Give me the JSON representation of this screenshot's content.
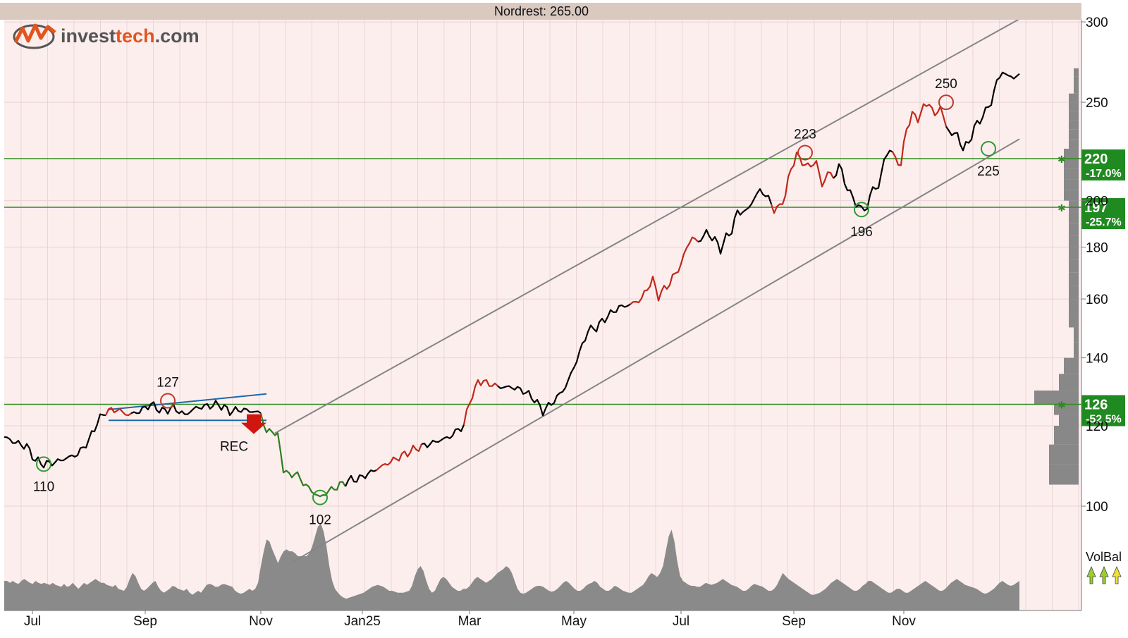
{
  "header": {
    "title": "Nordrest: 265.00"
  },
  "logo": {
    "text_prefix": "invest",
    "text_accent": "tech",
    "text_suffix": ".com"
  },
  "colors": {
    "plot_bg": "#fdeeee",
    "header_bg": "#d9c9bf",
    "price_up": "#000000",
    "price_trend": "#c0281a",
    "price_down": "#2e7d1f",
    "channel": "#858585",
    "support": "#2e8b1f",
    "tag_bg": "#1f8a1f",
    "pattern": "#1c6aa8",
    "volume": "#8a8a8a",
    "peak_marker": "#c0392b",
    "trough_marker": "#2e9b2e",
    "signal_arrow": "#d0170f"
  },
  "chart_data": {
    "type": "line",
    "title": "Nordrest: 265.00",
    "x_axis": {
      "tick_labels": [
        "Jul",
        "Sep",
        "Nov",
        "Jan25",
        "Mar",
        "May",
        "Jul",
        "Sep",
        "Nov"
      ],
      "tick_index": [
        10,
        50,
        91,
        127,
        165,
        202,
        240,
        280,
        319
      ]
    },
    "y_axis": {
      "tick_labels": [
        "100",
        "120",
        "140",
        "160",
        "180",
        "200",
        "250",
        "300"
      ],
      "tick_values": [
        100,
        120,
        140,
        160,
        180,
        200,
        250,
        300
      ],
      "ylim": [
        100,
        300
      ]
    },
    "price_keypoints": [
      [
        0,
        117
      ],
      [
        4,
        115.5
      ],
      [
        8,
        114.5
      ],
      [
        11,
        111
      ],
      [
        14,
        110
      ],
      [
        18,
        110.5
      ],
      [
        22,
        111.5
      ],
      [
        26,
        112.5
      ],
      [
        30,
        116
      ],
      [
        33,
        121
      ],
      [
        36,
        124
      ],
      [
        40,
        124.5
      ],
      [
        44,
        123
      ],
      [
        48,
        124
      ],
      [
        52,
        126
      ],
      [
        56,
        124
      ],
      [
        60,
        125
      ],
      [
        64,
        123
      ],
      [
        68,
        125
      ],
      [
        72,
        125.5
      ],
      [
        76,
        126
      ],
      [
        80,
        124
      ],
      [
        84,
        124.5
      ],
      [
        88,
        124
      ],
      [
        91,
        123.5
      ],
      [
        93,
        118
      ],
      [
        95,
        119
      ],
      [
        97,
        117
      ],
      [
        99,
        109
      ],
      [
        101,
        107
      ],
      [
        103,
        108
      ],
      [
        106,
        105.5
      ],
      [
        109,
        103.5
      ],
      [
        112,
        102
      ],
      [
        115,
        103.5
      ],
      [
        118,
        104.5
      ],
      [
        122,
        106
      ],
      [
        126,
        106.5
      ],
      [
        130,
        108
      ],
      [
        134,
        109.5
      ],
      [
        138,
        111
      ],
      [
        142,
        112.5
      ],
      [
        146,
        114
      ],
      [
        150,
        115
      ],
      [
        154,
        116
      ],
      [
        158,
        117
      ],
      [
        161,
        119
      ],
      [
        163,
        120
      ],
      [
        165,
        127
      ],
      [
        167,
        130
      ],
      [
        168,
        133
      ],
      [
        172,
        132
      ],
      [
        176,
        131
      ],
      [
        180,
        131
      ],
      [
        184,
        130
      ],
      [
        188,
        127.5
      ],
      [
        191,
        124
      ],
      [
        195,
        127
      ],
      [
        199,
        131
      ],
      [
        202,
        137
      ],
      [
        205,
        144
      ],
      [
        207,
        149
      ],
      [
        210,
        150
      ],
      [
        214,
        154
      ],
      [
        218,
        157
      ],
      [
        222,
        158
      ],
      [
        226,
        160
      ],
      [
        228,
        164
      ],
      [
        230,
        167
      ],
      [
        232,
        161
      ],
      [
        236,
        166
      ],
      [
        240,
        173
      ],
      [
        242,
        180
      ],
      [
        244,
        184
      ],
      [
        246,
        182
      ],
      [
        249,
        186
      ],
      [
        252,
        183
      ],
      [
        254,
        179
      ],
      [
        256,
        184
      ],
      [
        258,
        187
      ],
      [
        260,
        195
      ],
      [
        263,
        195
      ],
      [
        266,
        201
      ],
      [
        268,
        205
      ],
      [
        271,
        201
      ],
      [
        273,
        196
      ],
      [
        275,
        197
      ],
      [
        277,
        203
      ],
      [
        279,
        215
      ],
      [
        281,
        222
      ],
      [
        283,
        218
      ],
      [
        286,
        216
      ],
      [
        288,
        219
      ],
      [
        290,
        206
      ],
      [
        292,
        214
      ],
      [
        294,
        210
      ],
      [
        296,
        217
      ],
      [
        298,
        209
      ],
      [
        300,
        203
      ],
      [
        302,
        199
      ],
      [
        304,
        196
      ],
      [
        306,
        197
      ],
      [
        308,
        206
      ],
      [
        310,
        206
      ],
      [
        312,
        219
      ],
      [
        314,
        225
      ],
      [
        316,
        220
      ],
      [
        318,
        217
      ],
      [
        320,
        236
      ],
      [
        322,
        243
      ],
      [
        324,
        241
      ],
      [
        326,
        247
      ],
      [
        328,
        250
      ],
      [
        330,
        242
      ],
      [
        332,
        248
      ],
      [
        334,
        236
      ],
      [
        336,
        233
      ],
      [
        338,
        232
      ],
      [
        340,
        225
      ],
      [
        342,
        228
      ],
      [
        344,
        236
      ],
      [
        346,
        240
      ],
      [
        348,
        245
      ],
      [
        350,
        250
      ],
      [
        352,
        262
      ],
      [
        354,
        268
      ],
      [
        356,
        265
      ]
    ],
    "red_segments": [
      [
        36,
        44
      ],
      [
        132,
        147
      ],
      [
        163,
        174
      ],
      [
        222,
        245
      ],
      [
        272,
        293
      ],
      [
        315,
        333
      ]
    ],
    "green_segment": [
      91,
      120
    ],
    "annotations": {
      "labels": [
        "110",
        "127",
        "REC",
        "102",
        "223",
        "196",
        "250",
        "225"
      ]
    },
    "peaks_troughs": [
      {
        "label": "110",
        "index": 14,
        "value": 110,
        "kind": "trough"
      },
      {
        "label": "127",
        "index": 58,
        "value": 127,
        "kind": "peak"
      },
      {
        "label": "102",
        "index": 112,
        "value": 102,
        "kind": "trough"
      },
      {
        "label": "223",
        "index": 284,
        "value": 223,
        "kind": "peak"
      },
      {
        "label": "196",
        "index": 304,
        "value": 196,
        "kind": "trough"
      },
      {
        "label": "250",
        "index": 334,
        "value": 250,
        "kind": "peak"
      },
      {
        "label": "225",
        "index": 349,
        "value": 225,
        "kind": "trough"
      }
    ],
    "signal": {
      "label": "REC",
      "index": 90,
      "value": 122,
      "type": "sell"
    },
    "support_resistance": [
      {
        "level": 220,
        "label": "220",
        "pct": "-17.0%"
      },
      {
        "level": 197,
        "label": "197",
        "pct": "-25.7%"
      },
      {
        "level": 126,
        "label": "126",
        "pct": "-52.5%"
      }
    ],
    "channel": {
      "upper": [
        [
          96,
          118
        ],
        [
          360,
          302
        ]
      ],
      "lower": [
        [
          102,
          88
        ],
        [
          360,
          230
        ]
      ]
    },
    "pattern_lines": [
      {
        "from": [
          37,
          124.5
        ],
        "to": [
          93,
          129
        ]
      },
      {
        "from": [
          37,
          121.5
        ],
        "to": [
          93,
          121.5
        ]
      }
    ],
    "volume": {
      "label": "VolBal",
      "values": [
        0.3,
        0.3,
        0.28,
        0.3,
        0.28,
        0.27,
        0.3,
        0.32,
        0.3,
        0.28,
        0.27,
        0.3,
        0.28,
        0.27,
        0.28,
        0.27,
        0.26,
        0.28,
        0.26,
        0.25,
        0.24,
        0.27,
        0.24,
        0.25,
        0.28,
        0.25,
        0.22,
        0.25,
        0.28,
        0.26,
        0.28,
        0.3,
        0.32,
        0.3,
        0.28,
        0.28,
        0.26,
        0.25,
        0.24,
        0.26,
        0.22,
        0.21,
        0.2,
        0.24,
        0.32,
        0.38,
        0.35,
        0.28,
        0.22,
        0.2,
        0.22,
        0.25,
        0.28,
        0.3,
        0.24,
        0.2,
        0.18,
        0.2,
        0.22,
        0.25,
        0.24,
        0.22,
        0.21,
        0.2,
        0.22,
        0.18,
        0.16,
        0.18,
        0.2,
        0.18,
        0.22,
        0.26,
        0.27,
        0.26,
        0.24,
        0.24,
        0.26,
        0.27,
        0.26,
        0.25,
        0.24,
        0.2,
        0.18,
        0.17,
        0.18,
        0.2,
        0.22,
        0.2,
        0.22,
        0.28,
        0.45,
        0.6,
        0.72,
        0.7,
        0.62,
        0.55,
        0.48,
        0.55,
        0.6,
        0.62,
        0.6,
        0.6,
        0.58,
        0.55,
        0.55,
        0.55,
        0.55,
        0.58,
        0.65,
        0.75,
        0.85,
        0.88,
        0.8,
        0.65,
        0.45,
        0.3,
        0.22,
        0.18,
        0.15,
        0.13,
        0.12,
        0.13,
        0.14,
        0.15,
        0.16,
        0.17,
        0.18,
        0.2,
        0.22,
        0.24,
        0.25,
        0.26,
        0.25,
        0.24,
        0.22,
        0.2,
        0.2,
        0.19,
        0.18,
        0.18,
        0.18,
        0.19,
        0.2,
        0.25,
        0.35,
        0.42,
        0.45,
        0.4,
        0.3,
        0.22,
        0.18,
        0.2,
        0.26,
        0.32,
        0.34,
        0.32,
        0.28,
        0.24,
        0.22,
        0.2,
        0.2,
        0.22,
        0.22,
        0.24,
        0.28,
        0.32,
        0.34,
        0.32,
        0.3,
        0.28,
        0.3,
        0.32,
        0.35,
        0.38,
        0.4,
        0.42,
        0.45,
        0.43,
        0.38,
        0.3,
        0.22,
        0.18,
        0.17,
        0.18,
        0.2,
        0.22,
        0.24,
        0.25,
        0.25,
        0.24,
        0.22,
        0.2,
        0.19,
        0.2,
        0.22,
        0.25,
        0.28,
        0.3,
        0.28,
        0.25,
        0.22,
        0.2,
        0.2,
        0.22,
        0.25,
        0.27,
        0.28,
        0.3,
        0.28,
        0.24,
        0.22,
        0.2,
        0.2,
        0.22,
        0.25,
        0.24,
        0.22,
        0.2,
        0.19,
        0.18,
        0.18,
        0.2,
        0.22,
        0.24,
        0.26,
        0.3,
        0.35,
        0.38,
        0.36,
        0.34,
        0.38,
        0.45,
        0.6,
        0.75,
        0.82,
        0.7,
        0.5,
        0.35,
        0.3,
        0.28,
        0.26,
        0.25,
        0.25,
        0.24,
        0.24,
        0.26,
        0.28,
        0.27,
        0.26,
        0.27,
        0.28,
        0.3,
        0.32,
        0.3,
        0.28,
        0.26,
        0.25,
        0.24,
        0.22,
        0.2,
        0.2,
        0.22,
        0.25,
        0.27,
        0.26,
        0.25,
        0.24,
        0.22,
        0.2,
        0.2,
        0.22,
        0.26,
        0.32,
        0.38,
        0.35,
        0.32,
        0.3,
        0.28,
        0.26,
        0.24,
        0.22,
        0.2,
        0.18,
        0.16,
        0.16,
        0.17,
        0.18,
        0.2,
        0.22,
        0.25,
        0.28,
        0.3,
        0.32,
        0.3,
        0.28,
        0.26,
        0.24,
        0.22,
        0.2,
        0.2,
        0.22,
        0.25,
        0.27,
        0.3,
        0.3,
        0.28,
        0.26,
        0.24,
        0.22,
        0.2,
        0.18,
        0.18,
        0.2,
        0.22,
        0.22,
        0.2,
        0.18,
        0.18,
        0.2,
        0.22,
        0.24,
        0.26,
        0.28,
        0.3,
        0.28,
        0.26,
        0.24,
        0.22,
        0.2,
        0.2,
        0.22,
        0.25,
        0.28,
        0.3,
        0.32,
        0.3,
        0.28,
        0.26,
        0.25,
        0.24,
        0.23,
        0.22,
        0.2,
        0.18,
        0.17,
        0.18,
        0.2,
        0.22,
        0.25,
        0.28,
        0.3,
        0.28,
        0.26,
        0.25,
        0.26,
        0.28,
        0.3
      ]
    },
    "price_profile": [
      [
        105,
        6
      ],
      [
        110,
        6
      ],
      [
        115,
        5
      ],
      [
        120,
        4
      ],
      [
        123,
        5
      ],
      [
        126,
        9
      ],
      [
        130,
        4
      ],
      [
        135,
        3
      ],
      [
        140,
        1
      ],
      [
        145,
        1
      ],
      [
        150,
        2
      ],
      [
        155,
        2
      ],
      [
        160,
        2
      ],
      [
        165,
        2
      ],
      [
        170,
        2
      ],
      [
        175,
        2
      ],
      [
        180,
        2
      ],
      [
        185,
        2
      ],
      [
        190,
        2
      ],
      [
        195,
        2
      ],
      [
        200,
        3
      ],
      [
        205,
        3
      ],
      [
        210,
        3
      ],
      [
        215,
        3
      ],
      [
        220,
        3
      ],
      [
        225,
        2
      ],
      [
        230,
        2
      ],
      [
        235,
        2
      ],
      [
        240,
        2
      ],
      [
        245,
        2
      ],
      [
        250,
        2
      ],
      [
        255,
        1
      ],
      [
        260,
        1
      ],
      [
        265,
        1
      ],
      [
        270,
        1
      ]
    ]
  }
}
